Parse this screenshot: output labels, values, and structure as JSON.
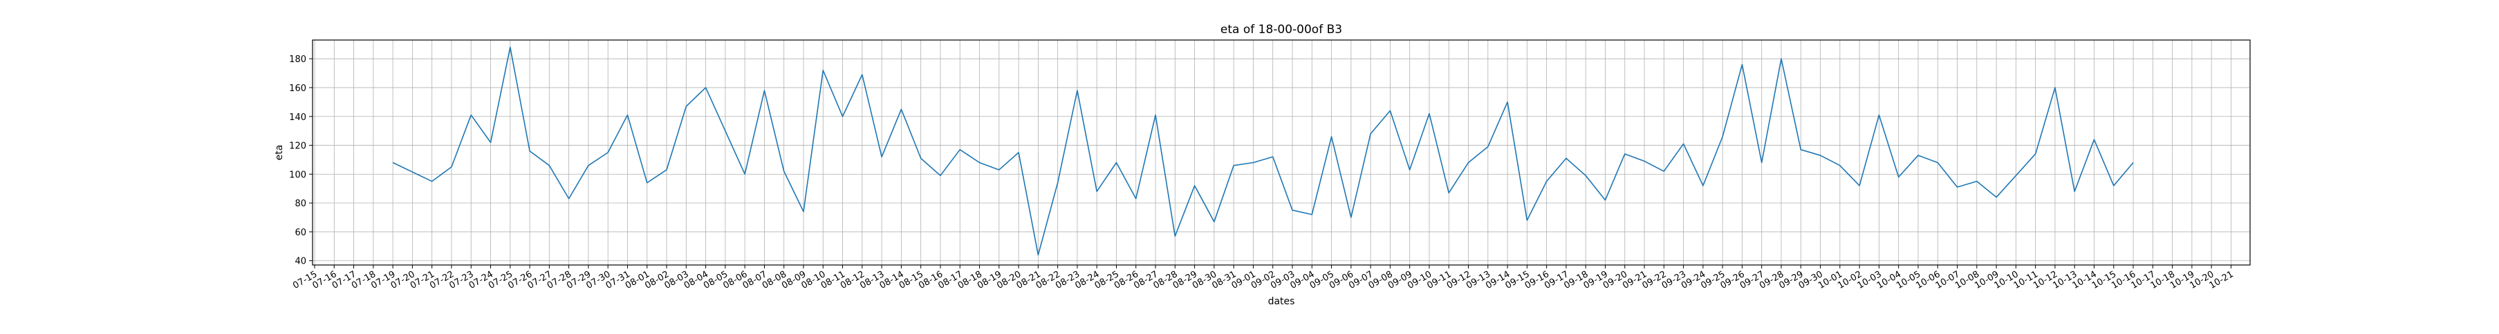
{
  "chart_data": {
    "type": "line",
    "title": "eta of 18-00-00of B3",
    "xlabel": "dates",
    "ylabel": "eta",
    "grid": true,
    "line_color": "#1f77b4",
    "x_ticks": [
      "07-15",
      "07-16",
      "07-17",
      "07-18",
      "07-19",
      "07-20",
      "07-21",
      "07-22",
      "07-23",
      "07-24",
      "07-25",
      "07-26",
      "07-27",
      "07-28",
      "07-29",
      "07-30",
      "07-31",
      "08-01",
      "08-02",
      "08-03",
      "08-04",
      "08-05",
      "08-06",
      "08-07",
      "08-08",
      "08-09",
      "08-10",
      "08-11",
      "08-12",
      "08-13",
      "08-14",
      "08-15",
      "08-16",
      "08-17",
      "08-18",
      "08-19",
      "08-20",
      "08-21",
      "08-22",
      "08-23",
      "08-24",
      "08-25",
      "08-26",
      "08-27",
      "08-28",
      "08-29",
      "08-30",
      "08-31",
      "09-01",
      "09-02",
      "09-03",
      "09-04",
      "09-05",
      "09-06",
      "09-07",
      "09-08",
      "09-09",
      "09-10",
      "09-11",
      "09-12",
      "09-13",
      "09-14",
      "09-15",
      "09-16",
      "09-17",
      "09-18",
      "09-19",
      "09-20",
      "09-21",
      "09-22",
      "09-23",
      "09-24",
      "09-25",
      "09-26",
      "09-27",
      "09-28",
      "09-29",
      "09-30",
      "10-01",
      "10-02",
      "10-03",
      "10-04",
      "10-05",
      "10-06",
      "10-07",
      "10-08",
      "10-09",
      "10-10",
      "10-11",
      "10-12",
      "10-13",
      "10-14",
      "10-15",
      "10-16",
      "10-17",
      "10-18",
      "10-19",
      "10-20",
      "10-21"
    ],
    "ylim": [
      37,
      193
    ],
    "y_ticks": [
      40,
      60,
      80,
      100,
      120,
      140,
      160,
      180
    ],
    "x": [
      "07-19",
      "07-21",
      "07-22",
      "07-23",
      "07-24",
      "07-25",
      "07-26",
      "07-27",
      "07-28",
      "07-29",
      "07-30",
      "07-31",
      "08-01",
      "08-02",
      "08-03",
      "08-04",
      "08-05",
      "08-06",
      "08-07",
      "08-08",
      "08-09",
      "08-10",
      "08-11",
      "08-12",
      "08-13",
      "08-14",
      "08-15",
      "08-16",
      "08-17",
      "08-18",
      "08-19",
      "08-20",
      "08-21",
      "08-22",
      "08-23",
      "08-24",
      "08-25",
      "08-26",
      "08-27",
      "08-28",
      "08-29",
      "08-30",
      "08-31",
      "09-01",
      "09-02",
      "09-03",
      "09-04",
      "09-05",
      "09-06",
      "09-07",
      "09-08",
      "09-09",
      "09-10",
      "09-11",
      "09-12",
      "09-13",
      "09-14",
      "09-15",
      "09-16",
      "09-17",
      "09-18",
      "09-19",
      "09-20",
      "09-21",
      "09-22",
      "09-23",
      "09-24",
      "09-25",
      "09-26",
      "09-27",
      "09-28",
      "09-29",
      "09-30",
      "10-01",
      "10-02",
      "10-03",
      "10-04",
      "10-05",
      "10-06",
      "10-07",
      "10-08",
      "10-09",
      "10-10",
      "10-11",
      "10-12",
      "10-13",
      "10-14",
      "10-15",
      "10-16"
    ],
    "y": [
      108,
      95,
      105,
      141,
      122,
      188,
      116,
      106,
      83,
      106,
      115,
      141,
      94,
      103,
      147,
      160,
      130,
      100,
      158,
      102,
      74,
      172,
      140,
      169,
      112,
      145,
      111,
      99,
      117,
      108,
      103,
      115,
      44,
      94,
      158,
      88,
      108,
      83,
      141,
      57,
      92,
      67,
      106,
      108,
      112,
      75,
      72,
      126,
      70,
      128,
      144,
      103,
      142,
      87,
      108,
      119,
      150,
      68,
      95,
      111,
      99,
      82,
      114,
      109,
      102,
      121,
      92,
      126,
      176,
      108,
      180,
      117,
      113,
      106,
      92,
      141,
      98,
      113,
      108,
      91,
      95,
      84,
      99,
      114,
      160,
      88,
      124,
      92,
      108
    ]
  }
}
